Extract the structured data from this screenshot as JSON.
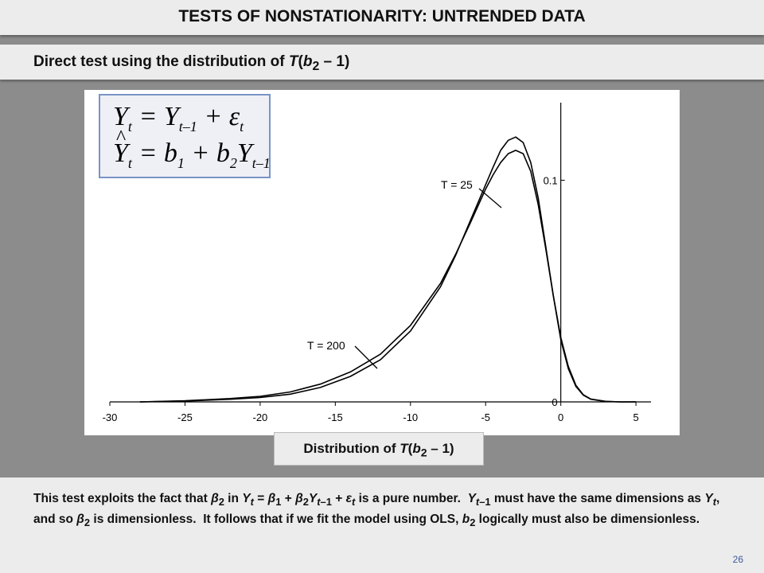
{
  "slide": {
    "title": "TESTS OF NONSTATIONARITY: UNTRENDED DATA",
    "subtitle": "Direct test using the distribution of T(b2 – 1)",
    "distribution_label": "Distribution of T(b2 – 1)",
    "page_number": "26",
    "equations": [
      "Yt = Yt–1 + εt",
      "Ŷt = b1 + b2Yt–1"
    ],
    "body_text": "This test exploits the fact that β2 in Yt = β1 + β2Yt–1 + εt is a pure number. Yt–1 must have the same dimensions as Yt, and so β2 is dimensionless. It follows that if we fit the model using OLS, b2 logically must also be dimensionless."
  },
  "chart_data": {
    "type": "line",
    "title": "",
    "xlabel": "",
    "ylabel": "",
    "xlim": [
      -30,
      6
    ],
    "ylim": [
      0,
      0.135
    ],
    "x_ticks": [
      -30,
      -25,
      -20,
      -15,
      -10,
      -5,
      0,
      5
    ],
    "y_ticks": [
      0,
      0.1
    ],
    "y_tick_labels": [
      "0",
      "0.1"
    ],
    "grid": false,
    "series": [
      {
        "name": "T = 25",
        "x": [
          -28,
          -25,
          -22,
          -20,
          -18,
          -16,
          -14,
          -12,
          -10,
          -8,
          -7,
          -6,
          -5,
          -4.5,
          -4,
          -3.5,
          -3,
          -2.5,
          -2,
          -1.5,
          -1,
          -0.5,
          0,
          0.5,
          1,
          1.5,
          2,
          3,
          4,
          5
        ],
        "y": [
          0.0,
          0.0004,
          0.0012,
          0.002,
          0.0035,
          0.0065,
          0.0115,
          0.019,
          0.032,
          0.052,
          0.066,
          0.082,
          0.098,
          0.106,
          0.1135,
          0.118,
          0.1195,
          0.117,
          0.108,
          0.092,
          0.07,
          0.048,
          0.028,
          0.015,
          0.007,
          0.003,
          0.0012,
          0.0002,
          0.0,
          0.0
        ]
      },
      {
        "name": "T = 200",
        "x": [
          -28,
          -25,
          -22,
          -20,
          -18,
          -16,
          -14,
          -12,
          -10,
          -8,
          -7,
          -6,
          -5,
          -4.5,
          -4,
          -3.5,
          -3,
          -2.5,
          -2,
          -1.5,
          -1,
          -0.5,
          0,
          0.5,
          1,
          1.5,
          2,
          3,
          4,
          5
        ],
        "y": [
          0.0,
          0.0005,
          0.0015,
          0.0025,
          0.0045,
          0.008,
          0.0135,
          0.0215,
          0.0345,
          0.0535,
          0.0665,
          0.081,
          0.096,
          0.1025,
          0.108,
          0.112,
          0.1135,
          0.112,
          0.104,
          0.089,
          0.069,
          0.048,
          0.029,
          0.016,
          0.0075,
          0.0032,
          0.0013,
          0.0002,
          0.0,
          0.0
        ]
      }
    ]
  }
}
